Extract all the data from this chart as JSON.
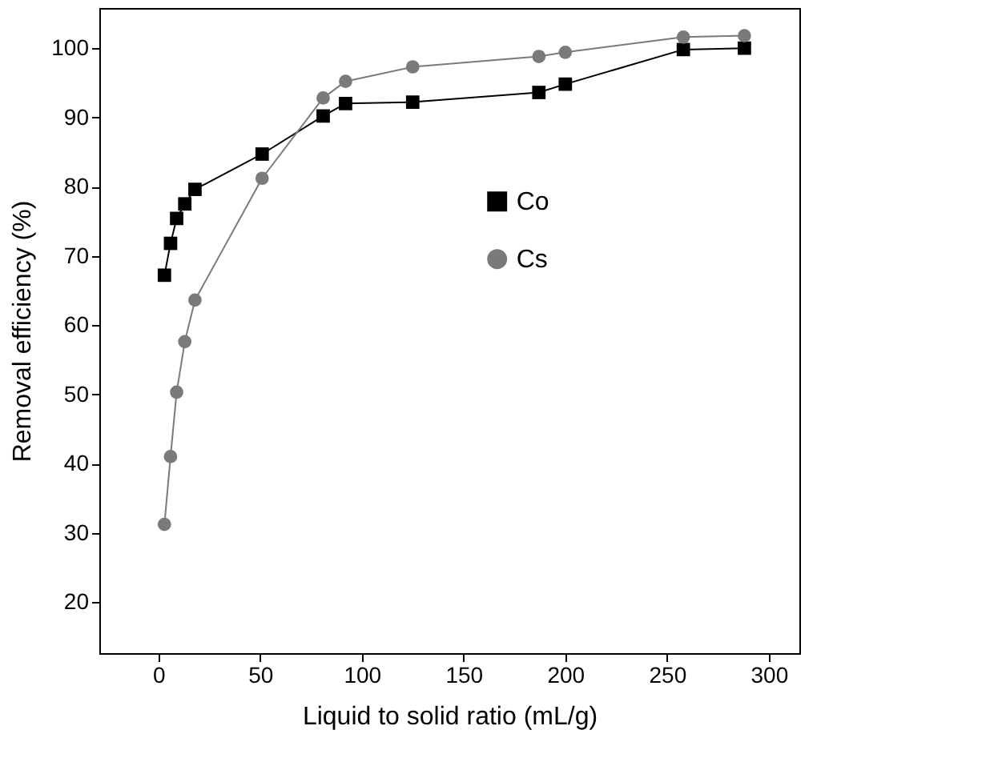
{
  "chart_data": {
    "type": "line",
    "xlabel": "Liquid to solid ratio (mL/g)",
    "ylabel": "Removal efficiency (%)",
    "xlim": [
      -29,
      315
    ],
    "xticks": [
      0,
      50,
      100,
      150,
      200,
      250,
      300
    ],
    "ylim": [
      12.6,
      105.8
    ],
    "yticks": [
      20,
      30,
      40,
      50,
      60,
      70,
      80,
      90,
      100
    ],
    "x": [
      3,
      6,
      9,
      13,
      18,
      51,
      81,
      92,
      125,
      187,
      200,
      258,
      288
    ],
    "series": [
      {
        "name": "Co",
        "color": "#000000",
        "marker": "square",
        "values": [
          67.2,
          71.8,
          75.4,
          77.5,
          79.6,
          84.7,
          90.2,
          92.0,
          92.2,
          93.6,
          94.8,
          99.8,
          100.0
        ]
      },
      {
        "name": "Cs",
        "color": "#7a7a7a",
        "marker": "circle",
        "values": [
          31.2,
          41.0,
          50.3,
          57.6,
          63.6,
          81.2,
          92.8,
          95.2,
          97.3,
          98.8,
          99.4,
          101.6,
          101.8
        ]
      }
    ],
    "grid": false,
    "legend": "right",
    "line_style": "solid"
  }
}
